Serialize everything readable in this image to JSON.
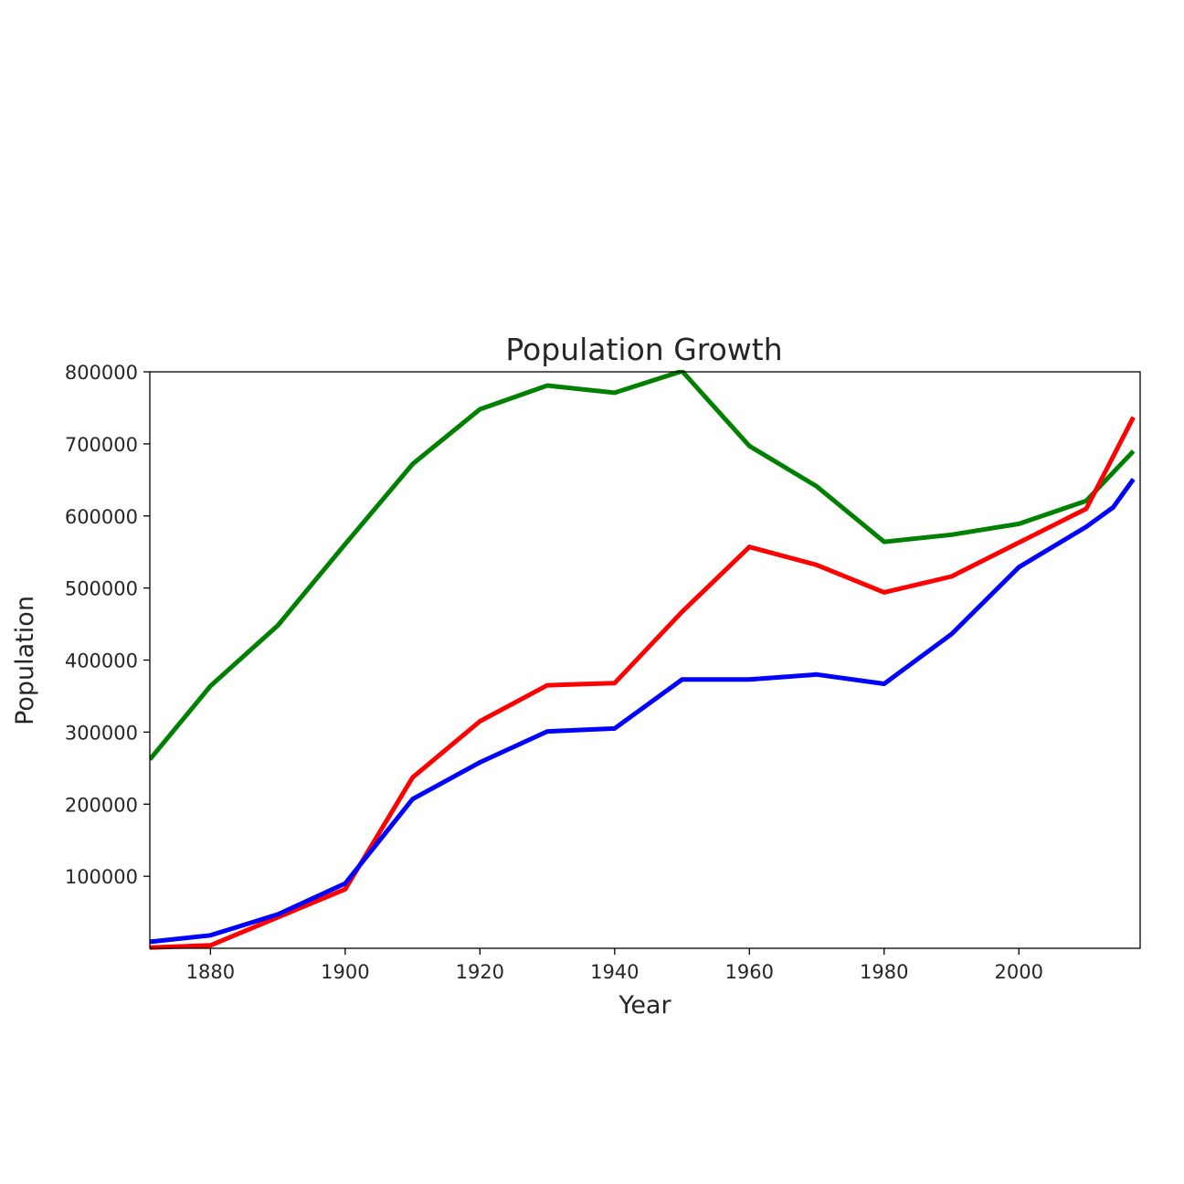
{
  "chart_data": {
    "type": "line",
    "title": "Population Growth",
    "xlabel": "Year",
    "ylabel": "Population",
    "xlim": [
      1871,
      2018
    ],
    "ylim": [
      0,
      800000
    ],
    "xticks": [
      1880,
      1900,
      1920,
      1940,
      1960,
      1980,
      2000
    ],
    "yticks": [
      100000,
      200000,
      300000,
      400000,
      500000,
      600000,
      700000,
      800000
    ],
    "grid": false,
    "legend": "none",
    "series": [
      {
        "color": "#008000",
        "x": [
          1871,
          1880,
          1890,
          1900,
          1910,
          1920,
          1930,
          1940,
          1950,
          1960,
          1970,
          1980,
          1990,
          2000,
          2010,
          2017
        ],
        "y": [
          262000,
          364000,
          448000,
          561000,
          672000,
          748000,
          781000,
          771000,
          801000,
          697000,
          641000,
          564000,
          574000,
          589000,
          621000,
          690000
        ]
      },
      {
        "color": "#ff0000",
        "x": [
          1871,
          1880,
          1890,
          1900,
          1910,
          1920,
          1930,
          1940,
          1950,
          1960,
          1970,
          1980,
          1990,
          2000,
          2010,
          2017
        ],
        "y": [
          1000,
          4000,
          43000,
          82000,
          237000,
          315000,
          365000,
          368000,
          467000,
          557000,
          532000,
          494000,
          516000,
          563000,
          610000,
          737000
        ]
      },
      {
        "color": "#0000ff",
        "x": [
          1871,
          1880,
          1890,
          1900,
          1910,
          1920,
          1930,
          1940,
          1950,
          1960,
          1970,
          1980,
          1990,
          2000,
          2010,
          2014,
          2017
        ],
        "y": [
          9000,
          18000,
          47000,
          90000,
          207000,
          258000,
          301000,
          305000,
          373000,
          373000,
          380000,
          367000,
          436000,
          529000,
          585000,
          612000,
          651000
        ]
      }
    ]
  }
}
